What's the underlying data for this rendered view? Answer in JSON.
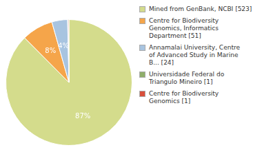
{
  "chart_data": {
    "type": "pie",
    "categories": [
      "Mined from GenBank, NCBI [523]",
      "Centre for Biodiversity\nGenomics, Informatics\nDepartment [51]",
      "Annamalai University, Centre\nof Advanced Study in Marine\nB... [24]",
      "Universidade Federal do\nTriangulo Mineiro [1]",
      "Centre for Biodiversity\nGenomics [1]"
    ],
    "values": [
      87,
      8,
      4,
      0.17,
      0.17
    ],
    "value_labels": [
      "87%",
      "8%",
      "4%",
      null,
      null
    ],
    "colors": [
      "#d4dc8c",
      "#f5a54a",
      "#a8c4e0",
      "#8fae6a",
      "#d94f3a"
    ],
    "legend": "right"
  }
}
